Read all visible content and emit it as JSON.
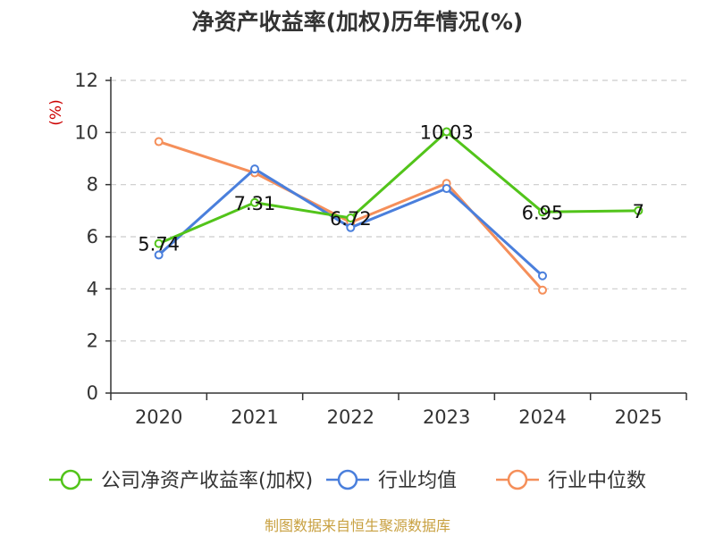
{
  "chart_data": {
    "type": "line",
    "title": "净资产收益率(加权)历年情况(%)",
    "ylabel": "(%)",
    "xlabel": "",
    "categories": [
      "2020",
      "2021",
      "2022",
      "2023",
      "2024",
      "2025"
    ],
    "yticks": [
      "0",
      "2",
      "4",
      "6",
      "8",
      "10",
      "12"
    ],
    "ylim": [
      0,
      12
    ],
    "grid": true,
    "legend_position": "bottom",
    "series": [
      {
        "name": "公司净资产收益率(加权)",
        "color": "#52c41a",
        "values": [
          5.74,
          7.31,
          6.72,
          10.03,
          6.95,
          7
        ],
        "labels": [
          "5.74",
          "7.31",
          "6.72",
          "10.03",
          "6.95",
          "7"
        ]
      },
      {
        "name": "行业均值",
        "color": "#4a7fdc",
        "values": [
          5.3,
          8.6,
          6.35,
          7.85,
          4.5,
          null
        ]
      },
      {
        "name": "行业中位数",
        "color": "#f58f5a",
        "values": [
          9.65,
          8.45,
          6.55,
          8.05,
          3.95,
          null
        ]
      }
    ],
    "source": "制图数据来自恒生聚源数据库",
    "colors": {
      "axis": "#333333",
      "grid": "#cccccc",
      "unit": "#cc0000",
      "source": "#c8a040"
    }
  }
}
